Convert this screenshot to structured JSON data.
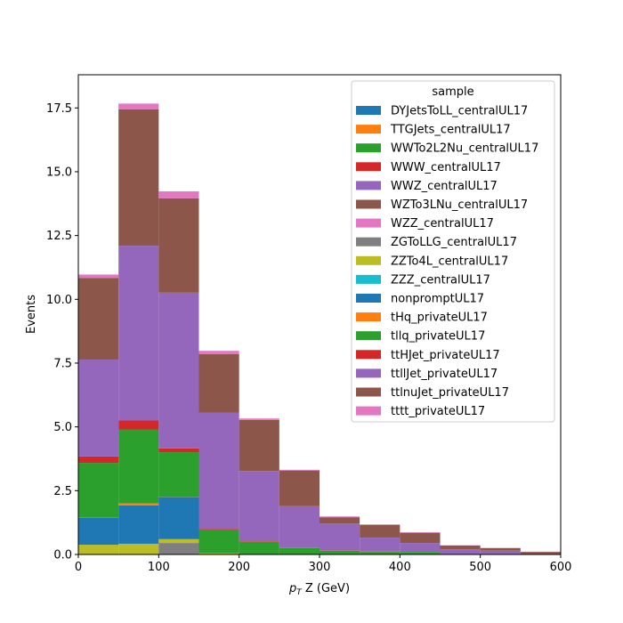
{
  "chart_data": {
    "type": "bar",
    "stacked": true,
    "bin_edges": [
      0,
      50,
      100,
      150,
      200,
      250,
      300,
      350,
      400,
      450,
      500,
      550,
      600
    ],
    "xlabel_prefix": "p",
    "xlabel_sub": "T",
    "xlabel_suffix": " Z (GeV)",
    "ylabel": "Events",
    "xlim": [
      0,
      600
    ],
    "ylim": [
      0,
      18.8
    ],
    "xticks": [
      "0",
      "100",
      "200",
      "300",
      "400",
      "500",
      "600"
    ],
    "yticks": [
      "0.0",
      "2.5",
      "5.0",
      "7.5",
      "10.0",
      "12.5",
      "15.0",
      "17.5"
    ],
    "legend_title": "sample",
    "legend_position": "upper-right",
    "series": [
      {
        "name": "DYJetsToLL_centralUL17",
        "color": "#1f77b4",
        "values": [
          0,
          0,
          0,
          0,
          0,
          0,
          0,
          0,
          0,
          0,
          0,
          0
        ]
      },
      {
        "name": "TTGJets_centralUL17",
        "color": "#ff7f0e",
        "values": [
          0,
          0,
          0,
          0,
          0,
          0,
          0,
          0,
          0,
          0,
          0,
          0
        ]
      },
      {
        "name": "WWTo2L2Nu_centralUL17",
        "color": "#2ca02c",
        "values": [
          0,
          0,
          0,
          0,
          0,
          0,
          0,
          0,
          0,
          0,
          0,
          0
        ]
      },
      {
        "name": "WWW_centralUL17",
        "color": "#d62728",
        "values": [
          0,
          0,
          0,
          0,
          0,
          0,
          0,
          0,
          0,
          0,
          0,
          0
        ]
      },
      {
        "name": "WWZ_centralUL17",
        "color": "#9467bd",
        "values": [
          0,
          0,
          0,
          0,
          0,
          0,
          0,
          0,
          0,
          0,
          0,
          0
        ]
      },
      {
        "name": "WZTo3LNu_centralUL17",
        "color": "#8c564b",
        "values": [
          0,
          0,
          0,
          0,
          0,
          0,
          0,
          0,
          0,
          0,
          0,
          0
        ]
      },
      {
        "name": "WZZ_centralUL17",
        "color": "#e377c2",
        "values": [
          0,
          0,
          0,
          0,
          0,
          0,
          0,
          0,
          0,
          0,
          0,
          0
        ]
      },
      {
        "name": "ZGToLLG_centralUL17",
        "color": "#7f7f7f",
        "values": [
          0,
          0,
          0.45,
          0,
          0,
          0,
          0,
          0,
          0,
          0,
          0,
          0
        ]
      },
      {
        "name": "ZZTo4L_centralUL17",
        "color": "#bcbd22",
        "values": [
          0.38,
          0.42,
          0.15,
          0.05,
          0,
          0,
          0,
          0,
          0,
          0,
          0,
          0
        ]
      },
      {
        "name": "ZZZ_centralUL17",
        "color": "#17becf",
        "values": [
          0,
          0,
          0,
          0,
          0,
          0,
          0,
          0,
          0,
          0,
          0,
          0
        ]
      },
      {
        "name": "nonpromptUL17",
        "color": "#1f77b4",
        "values": [
          1.05,
          1.5,
          1.65,
          0,
          0,
          0,
          0,
          0,
          0,
          0,
          0,
          0
        ]
      },
      {
        "name": "tHq_privateUL17",
        "color": "#ff7f0e",
        "values": [
          0.01,
          0.08,
          0.01,
          0,
          0,
          0,
          0,
          0,
          0,
          0,
          0,
          0
        ]
      },
      {
        "name": "tllq_privateUL17",
        "color": "#2ca02c",
        "values": [
          2.15,
          2.9,
          1.75,
          0.9,
          0.5,
          0.25,
          0.15,
          0.1,
          0.1,
          0,
          0,
          0
        ]
      },
      {
        "name": "ttHJet_privateUL17",
        "color": "#d62728",
        "values": [
          0.25,
          0.35,
          0.15,
          0.05,
          0.02,
          0.02,
          0.01,
          0.01,
          0,
          0,
          0,
          0
        ]
      },
      {
        "name": "ttllJet_privateUL17",
        "color": "#9467bd",
        "values": [
          3.8,
          6.85,
          6.1,
          4.55,
          2.75,
          1.62,
          1.05,
          0.55,
          0.35,
          0.2,
          0.15,
          0
        ]
      },
      {
        "name": "ttlnuJet_privateUL17",
        "color": "#8c564b",
        "values": [
          3.2,
          5.35,
          3.7,
          2.3,
          2.0,
          1.4,
          0.25,
          0.5,
          0.4,
          0.15,
          0.1,
          0.1
        ]
      },
      {
        "name": "tttt_privateUL17",
        "color": "#e377c2",
        "values": [
          0.13,
          0.22,
          0.27,
          0.13,
          0.06,
          0.03,
          0.03,
          0.02,
          0.02,
          0.01,
          0.01,
          0.01
        ]
      }
    ]
  }
}
